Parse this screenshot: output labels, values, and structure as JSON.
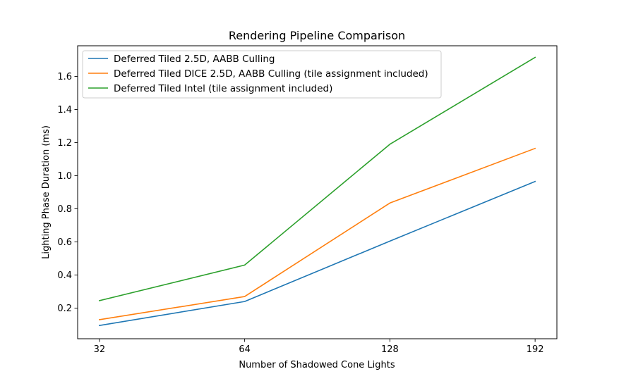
{
  "chart_data": {
    "type": "line",
    "title": "Rendering Pipeline Comparison",
    "xlabel": "Number of Shadowed Cone Lights",
    "ylabel": "Lighting Phase Duration (ms)",
    "x": [
      "32",
      "64",
      "128",
      "192"
    ],
    "xlim": [
      -0.15,
      3.15
    ],
    "ylim": [
      0.015,
      1.785
    ],
    "yticks": [
      "0.2",
      "0.4",
      "0.6",
      "0.8",
      "1.0",
      "1.2",
      "1.4",
      "1.6"
    ],
    "grid": false,
    "legend_position": "top-left",
    "series": [
      {
        "name": "Deferred Tiled 2.5D, AABB Culling",
        "color": "#1f77b4",
        "values": [
          0.095,
          0.24,
          0.605,
          0.965
        ]
      },
      {
        "name": "Deferred Tiled DICE 2.5D, AABB Culling (tile assignment included)",
        "color": "#ff7f0e",
        "values": [
          0.13,
          0.27,
          0.835,
          1.165
        ]
      },
      {
        "name": "Deferred Tiled Intel (tile assignment included)",
        "color": "#2ca02c",
        "values": [
          0.245,
          0.46,
          1.19,
          1.715
        ]
      }
    ]
  }
}
